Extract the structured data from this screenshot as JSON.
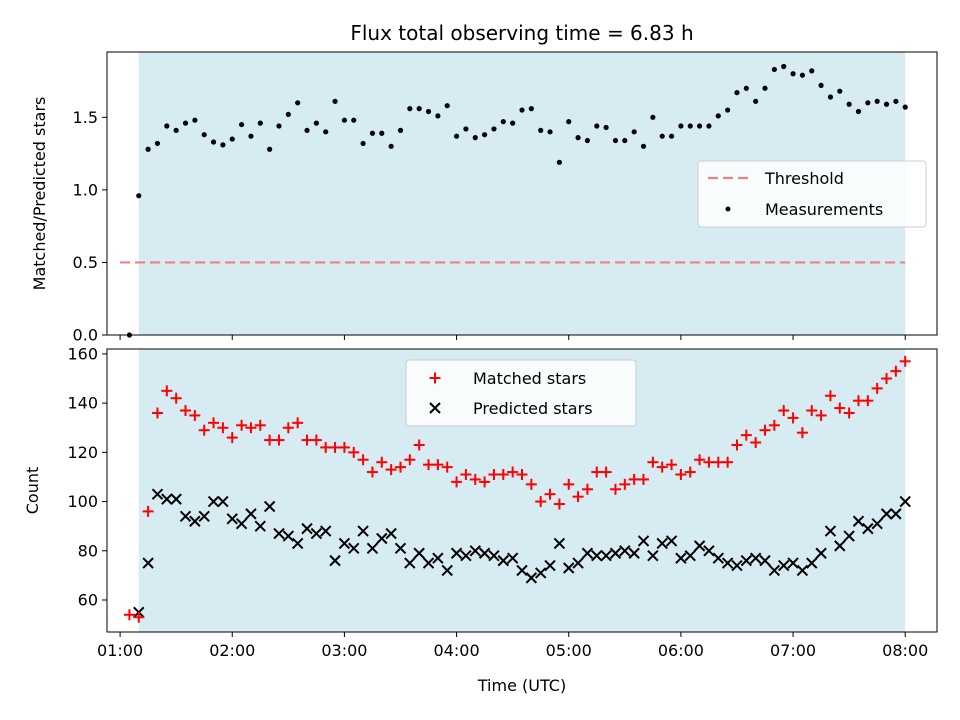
{
  "chart_data": [
    {
      "type": "scatter",
      "title": "Flux total observing time = 6.83 h",
      "xlabel": "",
      "ylabel": "Matched/Predicted stars",
      "ylim": [
        0,
        1.95
      ],
      "yticks": [
        "0.0",
        "0.5",
        "1.0",
        "1.5"
      ],
      "shaded_span": [
        "01:10",
        "08:00"
      ],
      "shade_color": "#add8e6",
      "threshold": 0.5,
      "threshold_color": "#f08080",
      "legend": {
        "placement": "right",
        "entries": [
          "Threshold",
          "Measurements"
        ]
      },
      "series": [
        {
          "name": "Measurements",
          "color": "#000000",
          "marker": "dot",
          "x": [
            "01:05",
            "01:10",
            "01:15",
            "01:20",
            "01:25",
            "01:30",
            "01:35",
            "01:40",
            "01:45",
            "01:50",
            "01:55",
            "02:00",
            "02:05",
            "02:10",
            "02:15",
            "02:20",
            "02:25",
            "02:30",
            "02:35",
            "02:40",
            "02:45",
            "02:50",
            "02:55",
            "03:00",
            "03:05",
            "03:10",
            "03:15",
            "03:20",
            "03:25",
            "03:30",
            "03:35",
            "03:40",
            "03:45",
            "03:50",
            "03:55",
            "04:00",
            "04:05",
            "04:10",
            "04:15",
            "04:20",
            "04:25",
            "04:30",
            "04:35",
            "04:40",
            "04:45",
            "04:50",
            "04:55",
            "05:00",
            "05:05",
            "05:10",
            "05:15",
            "05:20",
            "05:25",
            "05:30",
            "05:35",
            "05:40",
            "05:45",
            "05:50",
            "05:55",
            "06:00",
            "06:05",
            "06:10",
            "06:15",
            "06:20",
            "06:25",
            "06:30",
            "06:35",
            "06:40",
            "06:45",
            "06:50",
            "06:55",
            "07:00",
            "07:05",
            "07:10",
            "07:15",
            "07:20",
            "07:25",
            "07:30",
            "07:35",
            "07:40",
            "07:45",
            "07:50",
            "07:55",
            "08:00"
          ],
          "y": [
            0.0,
            0.96,
            1.28,
            1.32,
            1.44,
            1.41,
            1.46,
            1.48,
            1.38,
            1.33,
            1.31,
            1.35,
            1.45,
            1.37,
            1.46,
            1.28,
            1.44,
            1.52,
            1.6,
            1.41,
            1.46,
            1.4,
            1.61,
            1.48,
            1.48,
            1.32,
            1.39,
            1.39,
            1.3,
            1.41,
            1.56,
            1.56,
            1.54,
            1.51,
            1.58,
            1.37,
            1.42,
            1.36,
            1.38,
            1.42,
            1.47,
            1.46,
            1.55,
            1.56,
            1.41,
            1.4,
            1.19,
            1.47,
            1.36,
            1.34,
            1.44,
            1.43,
            1.34,
            1.34,
            1.4,
            1.3,
            1.5,
            1.37,
            1.37,
            1.44,
            1.44,
            1.44,
            1.44,
            1.51,
            1.55,
            1.67,
            1.7,
            1.61,
            1.7,
            1.83,
            1.85,
            1.8,
            1.79,
            1.82,
            1.72,
            1.64,
            1.68,
            1.59,
            1.54,
            1.6,
            1.61,
            1.59,
            1.61,
            1.57
          ]
        }
      ]
    },
    {
      "type": "scatter",
      "title": "",
      "xlabel": "Time (UTC)",
      "ylabel": "Count",
      "ylim": [
        47,
        162
      ],
      "xlim": [
        "00:53",
        "08:17"
      ],
      "xticks": [
        "01:00",
        "02:00",
        "03:00",
        "04:00",
        "05:00",
        "06:00",
        "07:00",
        "08:00"
      ],
      "yticks": [
        "60",
        "80",
        "100",
        "120",
        "140",
        "160"
      ],
      "shaded_span": [
        "01:10",
        "08:00"
      ],
      "legend": {
        "placement": "top-center",
        "entries": [
          "Matched stars",
          "Predicted stars"
        ]
      },
      "x": [
        "01:05",
        "01:10",
        "01:15",
        "01:20",
        "01:25",
        "01:30",
        "01:35",
        "01:40",
        "01:45",
        "01:50",
        "01:55",
        "02:00",
        "02:05",
        "02:10",
        "02:15",
        "02:20",
        "02:25",
        "02:30",
        "02:35",
        "02:40",
        "02:45",
        "02:50",
        "02:55",
        "03:00",
        "03:05",
        "03:10",
        "03:15",
        "03:20",
        "03:25",
        "03:30",
        "03:35",
        "03:40",
        "03:45",
        "03:50",
        "03:55",
        "04:00",
        "04:05",
        "04:10",
        "04:15",
        "04:20",
        "04:25",
        "04:30",
        "04:35",
        "04:40",
        "04:45",
        "04:50",
        "04:55",
        "05:00",
        "05:05",
        "05:10",
        "05:15",
        "05:20",
        "05:25",
        "05:30",
        "05:35",
        "05:40",
        "05:45",
        "05:50",
        "05:55",
        "06:00",
        "06:05",
        "06:10",
        "06:15",
        "06:20",
        "06:25",
        "06:30",
        "06:35",
        "06:40",
        "06:45",
        "06:50",
        "06:55",
        "07:00",
        "07:05",
        "07:10",
        "07:15",
        "07:20",
        "07:25",
        "07:30",
        "07:35",
        "07:40",
        "07:45",
        "07:50",
        "07:55",
        "08:00"
      ],
      "series": [
        {
          "name": "Matched stars",
          "color": "#ff0000",
          "marker": "plus",
          "values": [
            54,
            53,
            96,
            136,
            145,
            142,
            137,
            135,
            129,
            132,
            130,
            126,
            131,
            130,
            131,
            125,
            125,
            130,
            132,
            125,
            125,
            122,
            122,
            122,
            120,
            117,
            112,
            116,
            113,
            114,
            117,
            123,
            115,
            115,
            114,
            108,
            111,
            109,
            108,
            111,
            111,
            112,
            111,
            107,
            100,
            103,
            99,
            107,
            102,
            105,
            112,
            112,
            105,
            107,
            109,
            109,
            116,
            114,
            115,
            111,
            112,
            117,
            116,
            116,
            116,
            123,
            127,
            124,
            129,
            131,
            137,
            134,
            128,
            137,
            135,
            143,
            138,
            136,
            141,
            141,
            146,
            150,
            153,
            157
          ]
        },
        {
          "name": "Predicted stars",
          "color": "#000000",
          "marker": "x",
          "values": [
            null,
            55,
            75,
            103,
            101,
            101,
            94,
            92,
            94,
            100,
            100,
            93,
            91,
            95,
            90,
            98,
            87,
            86,
            83,
            89,
            87,
            88,
            76,
            83,
            81,
            88,
            81,
            85,
            87,
            81,
            75,
            79,
            75,
            77,
            72,
            79,
            78,
            80,
            79,
            78,
            76,
            77,
            72,
            69,
            71,
            74,
            83,
            73,
            75,
            79,
            78,
            78,
            79,
            80,
            79,
            84,
            78,
            83,
            84,
            77,
            78,
            82,
            80,
            77,
            75,
            74,
            76,
            77,
            76,
            72,
            74,
            75,
            72,
            75,
            79,
            88,
            82,
            86,
            92,
            89,
            91,
            95,
            95,
            100
          ]
        }
      ]
    }
  ]
}
